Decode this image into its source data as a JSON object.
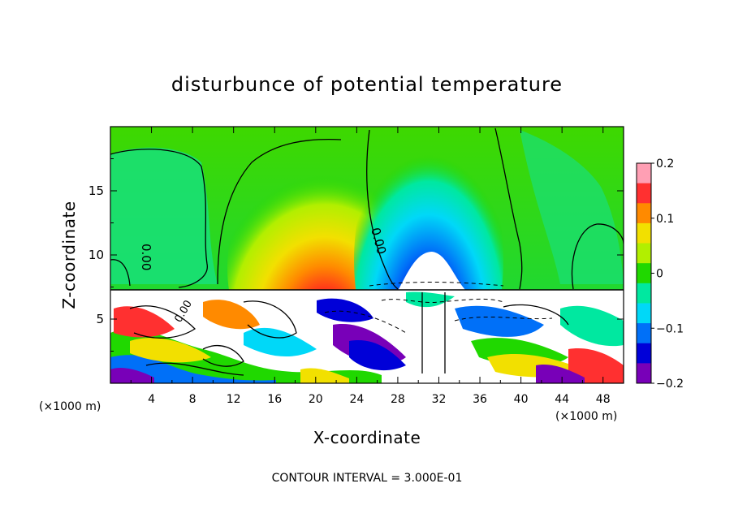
{
  "chart_data": {
    "type": "heatmap",
    "title": "disturbunce of potential temperature",
    "xlabel": "X-coordinate",
    "ylabel": "Z-coordinate",
    "x_unit": "(×1000 m)",
    "x_unit_right": "(×1000 m)",
    "xlim": [
      0,
      50
    ],
    "ylim": [
      0,
      20
    ],
    "x_ticks": [
      "4",
      "8",
      "12",
      "16",
      "20",
      "24",
      "28",
      "32",
      "36",
      "40",
      "44",
      "48"
    ],
    "y_ticks": [
      "5",
      "10",
      "15"
    ],
    "contour_interval_text": "CONTOUR INTERVAL = 3.000E-01",
    "contour_labels": [
      "0.00",
      "0.00",
      "0.00"
    ],
    "colorbar": {
      "range": [
        -0.2,
        0.2
      ],
      "tick_labels": [
        "0.2",
        "0.1",
        "0",
        "−0.1",
        "−0.2"
      ],
      "colors": [
        "#ff9fb4",
        "#ff3030",
        "#ff8a00",
        "#f2e000",
        "#b2ef00",
        "#20d800",
        "#00e8a0",
        "#00d8f8",
        "#0070f8",
        "#0000d8",
        "#7800b8"
      ]
    },
    "features": [
      {
        "sign": "positive",
        "x_center": 21,
        "z_center": 10,
        "peak": 0.2
      },
      {
        "sign": "negative",
        "x_center": 31,
        "z_center": 10,
        "peak": -0.2
      }
    ]
  }
}
